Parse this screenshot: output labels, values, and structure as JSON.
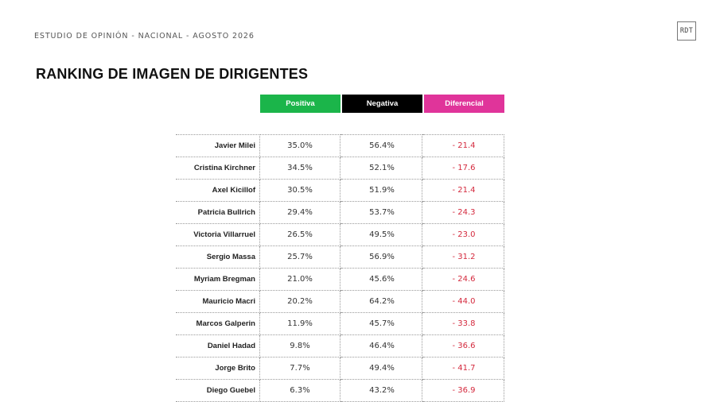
{
  "header": {
    "subtitle": "ESTUDIO DE OPINIÓN - NACIONAL - AGOSTO 2026",
    "logo_text": "RDT",
    "title": "RANKING DE IMAGEN DE DIRIGENTES"
  },
  "colors": {
    "positiva": "#1bb54a",
    "negativa": "#000000",
    "diferencial": "#e0349a",
    "diferencial_text": "#d4293d"
  },
  "table": {
    "columns": [
      "Positiva",
      "Negativa",
      "Diferencial"
    ],
    "rows": [
      {
        "name": "Javier Milei",
        "positiva": "35.0%",
        "negativa": "56.4%",
        "diferencial": "- 21.4"
      },
      {
        "name": "Cristina Kirchner",
        "positiva": "34.5%",
        "negativa": "52.1%",
        "diferencial": "- 17.6"
      },
      {
        "name": "Axel Kicillof",
        "positiva": "30.5%",
        "negativa": "51.9%",
        "diferencial": "- 21.4"
      },
      {
        "name": "Patricia Bullrich",
        "positiva": "29.4%",
        "negativa": "53.7%",
        "diferencial": "- 24.3"
      },
      {
        "name": "Victoria Villarruel",
        "positiva": "26.5%",
        "negativa": "49.5%",
        "diferencial": "- 23.0"
      },
      {
        "name": "Sergio Massa",
        "positiva": "25.7%",
        "negativa": "56.9%",
        "diferencial": "- 31.2"
      },
      {
        "name": "Myriam Bregman",
        "positiva": "21.0%",
        "negativa": "45.6%",
        "diferencial": "- 24.6"
      },
      {
        "name": "Mauricio Macri",
        "positiva": "20.2%",
        "negativa": "64.2%",
        "diferencial": "- 44.0"
      },
      {
        "name": "Marcos Galperin",
        "positiva": "11.9%",
        "negativa": "45.7%",
        "diferencial": "- 33.8"
      },
      {
        "name": "Daniel Hadad",
        "positiva": "9.8%",
        "negativa": "46.4%",
        "diferencial": "- 36.6"
      },
      {
        "name": "Jorge Brito",
        "positiva": "7.7%",
        "negativa": "49.4%",
        "diferencial": "- 41.7"
      },
      {
        "name": "Diego Guebel",
        "positiva": "6.3%",
        "negativa": "43.2%",
        "diferencial": "- 36.9"
      }
    ]
  }
}
